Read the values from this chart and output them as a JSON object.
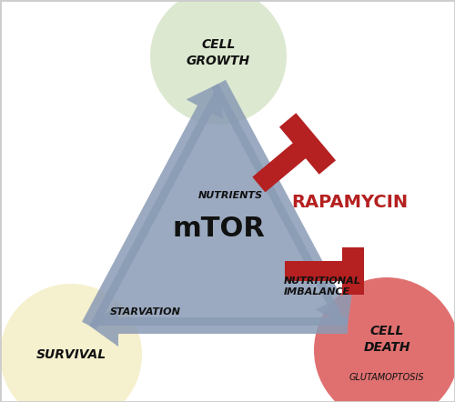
{
  "bg_color": "#ffffff",
  "border_color": "#cccccc",
  "triangle_color": "#8a9bb5",
  "triangle_alpha": 0.85,
  "circle_growth_color": "#dce8d0",
  "circle_survival_color": "#f5f0ce",
  "circle_death_color": "#e07070",
  "rapamycin_color": "#b52020",
  "mtor_label": "mTOR",
  "growth_label": "CELL\nGROWTH",
  "survival_label": "SURVIVAL",
  "death_label": "CELL\nDEATH",
  "glutamoptosis_label": "GLUTAMOPTOSIS",
  "nutrients_label": "NUTRIENTS",
  "starvation_label": "STARVATION",
  "nutritional_label": "NUTRITIONAL\nIMBALANCE",
  "rapamycin_label": "RAPAMYCIN",
  "label_color": "#111111",
  "fig_width": 5.0,
  "fig_height": 4.42,
  "dpi": 100
}
